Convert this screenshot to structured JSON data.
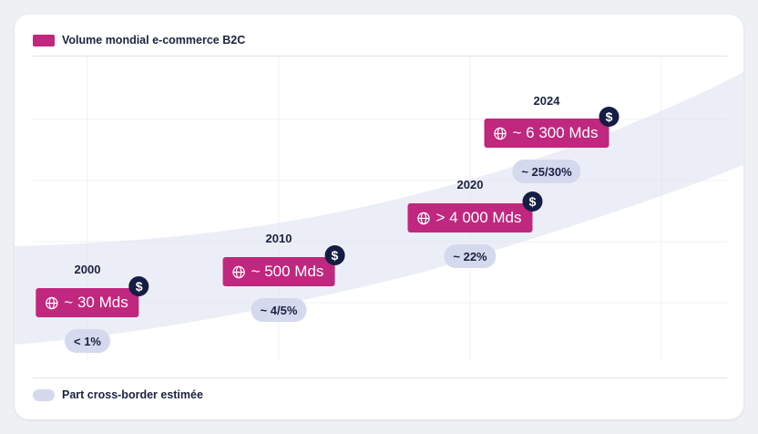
{
  "chart_data": {
    "type": "area",
    "title": "",
    "xlabel": "",
    "ylabel": "",
    "grid": true,
    "legend": {
      "top": "Volume mondial e-commerce B2C",
      "bottom": "Part cross-border estimée"
    },
    "colors": {
      "volume": "#c0277e",
      "cross_border_band": "#d5d9ee",
      "dollar_badge": "#141e45"
    },
    "categories": [
      "2000",
      "2010",
      "2020",
      "2024"
    ],
    "series": [
      {
        "name": "Volume mondial e-commerce B2C",
        "values": [
          30,
          500,
          4000,
          6300
        ],
        "labels": [
          "~ 30 Mds",
          "~ 500 Mds",
          "> 4 000 Mds",
          "~ 6 300 Mds"
        ]
      },
      {
        "name": "Part cross-border estimée",
        "labels": [
          "< 1%",
          "~ 4/5%",
          "~ 22%",
          "~ 25/30%"
        ]
      }
    ],
    "icons": {
      "volume": "globe-icon",
      "badge": "dollar-icon"
    }
  }
}
